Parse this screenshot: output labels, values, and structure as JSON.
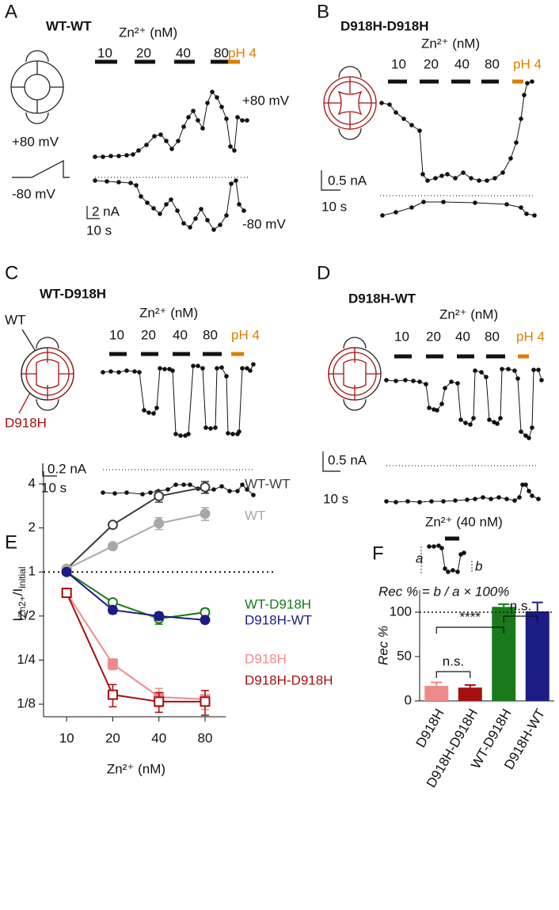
{
  "panels": [
    {
      "label": "A",
      "title": "WT-WT",
      "zn_label": "Zn²⁺ (nM)",
      "concentrations": [
        "10",
        "20",
        "40",
        "80"
      ],
      "acid": "pH 4",
      "protocol": [
        "+80 mV",
        "-80 mV"
      ],
      "trace_labels": [
        "+80 mV",
        "-80 mV"
      ],
      "scale": [
        "2 nA",
        "10 s"
      ]
    },
    {
      "label": "B",
      "title": "D918H-D918H",
      "zn_label": "Zn²⁺ (nM)",
      "concentrations": [
        "10",
        "20",
        "40",
        "80"
      ],
      "acid": "pH 4",
      "scale": [
        "0.5 nA",
        "10 s"
      ]
    },
    {
      "label": "C",
      "title": "WT-D918H",
      "zn_label": "Zn²⁺ (nM)",
      "concentrations": [
        "10",
        "20",
        "40",
        "80"
      ],
      "acid": "pH 4",
      "subunits": [
        "WT",
        "D918H"
      ],
      "scale": [
        "0.2 nA",
        "10 s"
      ]
    },
    {
      "label": "D",
      "title": "D918H-WT",
      "zn_label": "Zn²⁺ (nM)",
      "concentrations": [
        "10",
        "20",
        "40",
        "80"
      ],
      "acid": "pH 4",
      "scale": [
        "0.5 nA",
        "10 s"
      ]
    }
  ],
  "panel_f_inset": {
    "label": "Zn²⁺ (40 nM)",
    "a": "a",
    "b": "b",
    "formula": "Rec % = b / a × 100%"
  },
  "chart_data": [
    {
      "type": "line",
      "panel_label": "E",
      "xlabel": "Zn²⁺ (nM)",
      "ylabel": {
        "main": "I",
        "sub1": "Zn2+",
        "mid": "/I",
        "sub2": "initial"
      },
      "x": [
        10,
        20,
        40,
        80
      ],
      "xscale": "log",
      "xlim": [
        7.07,
        109
      ],
      "xticks": [
        10,
        20,
        40,
        80
      ],
      "yscale": "log",
      "ylim": [
        0.1025,
        4.88
      ],
      "yticks": [
        {
          "value": 0.125,
          "label": "1/8"
        },
        {
          "value": 0.25,
          "label": "1/4"
        },
        {
          "value": 0.5,
          "label": "1/2"
        },
        1,
        2,
        4
      ],
      "hline": 1,
      "series": [
        {
          "name": "WT-WT",
          "color": "#3c3c3c",
          "marker": "open-circle",
          "values": [
            1.05,
            2.1,
            3.3,
            3.8
          ],
          "errors": [
            0.04,
            0.08,
            0.3,
            0.35
          ]
        },
        {
          "name": "WT",
          "color": "#a8a8a8",
          "marker": "filled-circle",
          "values": [
            1.05,
            1.5,
            2.15,
            2.5
          ],
          "errors": [
            0.03,
            0.05,
            0.2,
            0.25
          ]
        },
        {
          "name": "WT-D918H",
          "color": "#1a7a1a",
          "marker": "open-circle",
          "values": [
            1.0,
            0.62,
            0.48,
            0.53
          ],
          "errors": [
            0.03,
            0.03,
            0.04,
            0.03
          ]
        },
        {
          "name": "D918H-WT",
          "color": "#1c1c84",
          "marker": "filled-circle",
          "values": [
            1.0,
            0.55,
            0.5,
            0.47
          ],
          "errors": [
            0.03,
            0.03,
            0.03,
            0.02
          ]
        },
        {
          "name": "D918H",
          "color": "#f08a8a",
          "marker": "filled-square",
          "values": [
            0.72,
            0.235,
            0.14,
            0.135
          ],
          "errors": [
            0.03,
            0.02,
            0.02,
            0.02
          ]
        },
        {
          "name": "D918H-D918H",
          "color": "#a50f0f",
          "marker": "open-square",
          "values": [
            0.72,
            0.145,
            0.13,
            0.13
          ],
          "errors": [
            0.04,
            0.025,
            0.02,
            0.025
          ]
        }
      ]
    },
    {
      "type": "bar",
      "panel_label": "F",
      "ylabel": "Rec %",
      "categories": [
        "D918H",
        "D918H-D918H",
        "WT-D918H",
        "D918H-WT"
      ],
      "values": [
        17,
        15,
        106,
        101
      ],
      "errors": [
        4,
        3,
        3,
        10
      ],
      "colors": [
        "#f08a8a",
        "#a50f0f",
        "#1a7a1a",
        "#1c1c84"
      ],
      "ylim": [
        0,
        125
      ],
      "yticks": [
        0,
        50,
        100
      ],
      "hline": 100,
      "annotations": [
        {
          "text": "****",
          "from": 0,
          "to": 2
        },
        {
          "text": "n.s.",
          "from": 0,
          "to": 1
        },
        {
          "text": "n.s.",
          "from": 2,
          "to": 3
        }
      ]
    }
  ]
}
